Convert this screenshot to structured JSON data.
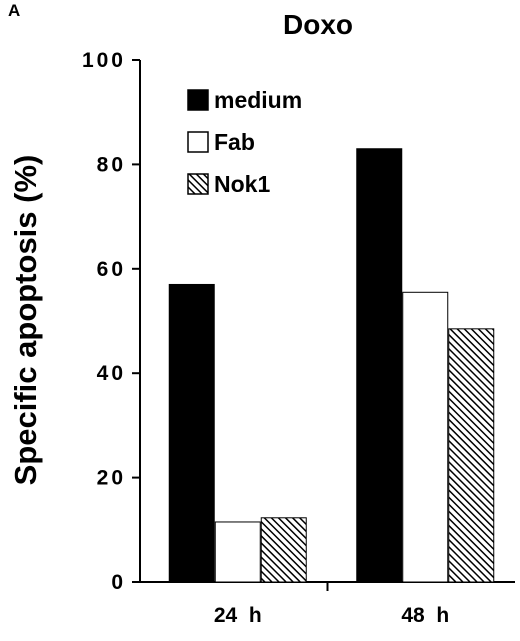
{
  "panel_label": "A",
  "chart_data": {
    "type": "bar",
    "title": "Doxo",
    "ylabel": "Specific apoptosis (%)",
    "xlabel": "",
    "ylim": [
      0,
      100
    ],
    "yticks": [
      0,
      20,
      40,
      60,
      80,
      100
    ],
    "categories": [
      "24  h",
      "48  h"
    ],
    "series": [
      {
        "name": "medium",
        "values": [
          57,
          83
        ],
        "color": "#000000",
        "fill": "solid"
      },
      {
        "name": "Fab",
        "values": [
          11.5,
          55.5
        ],
        "color": "#ffffff",
        "fill": "open"
      },
      {
        "name": "Nok1",
        "values": [
          12.3,
          48.5
        ],
        "color": "#000000",
        "fill": "hatched"
      }
    ],
    "legend_position": "top-left",
    "grid": false
  }
}
